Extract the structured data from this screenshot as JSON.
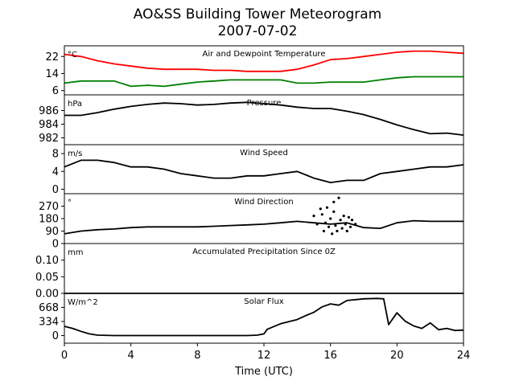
{
  "figure": {
    "title": "AO&SS Building Tower Meteorogram",
    "subtitle": "2007-07-02",
    "xlabel": "Time (UTC)"
  },
  "chart_data": [
    {
      "type": "line",
      "title": "Air and Dewpoint Temperature",
      "unit_label": "°C",
      "xlim": [
        0,
        24
      ],
      "ylim": [
        4,
        27
      ],
      "yticks": [
        6,
        14,
        22
      ],
      "x": [
        0,
        1,
        2,
        3,
        4,
        5,
        6,
        7,
        8,
        9,
        10,
        11,
        12,
        13,
        14,
        15,
        16,
        17,
        18,
        19,
        20,
        21,
        22,
        23,
        24
      ],
      "series": [
        {
          "name": "Air Temperature",
          "color": "#ff0000",
          "values": [
            23,
            22,
            20,
            18.5,
            17.5,
            16.5,
            16,
            16,
            16,
            15.5,
            15.5,
            15,
            15,
            15,
            16,
            18,
            20.5,
            21,
            22,
            23,
            24,
            24.5,
            24.5,
            24,
            23.5
          ]
        },
        {
          "name": "Dewpoint",
          "color": "#008000",
          "values": [
            9.5,
            10.5,
            10.5,
            10.5,
            8,
            8.5,
            8,
            9,
            10,
            10.5,
            11,
            11,
            11,
            11,
            9.5,
            9.5,
            10,
            10,
            10,
            11,
            12,
            12.5,
            12.5,
            12.5,
            12.5
          ]
        }
      ]
    },
    {
      "type": "line",
      "title": "Pressure",
      "unit_label": "hPa",
      "xlim": [
        0,
        24
      ],
      "ylim": [
        981,
        988.3
      ],
      "yticks": [
        982,
        984,
        986
      ],
      "x": [
        0,
        1,
        2,
        3,
        4,
        5,
        6,
        7,
        8,
        9,
        10,
        11,
        12,
        13,
        14,
        15,
        16,
        17,
        18,
        19,
        20,
        21,
        22,
        23,
        24
      ],
      "series": [
        {
          "name": "Pressure",
          "color": "#000000",
          "values": [
            985.3,
            985.3,
            985.7,
            986.2,
            986.6,
            986.9,
            987.1,
            987.0,
            986.8,
            986.9,
            987.1,
            987.2,
            987.0,
            986.8,
            986.5,
            986.3,
            986.3,
            985.9,
            985.4,
            984.7,
            983.9,
            983.2,
            982.6,
            982.7,
            982.4
          ]
        }
      ]
    },
    {
      "type": "line",
      "title": "Wind Speed",
      "unit_label": "m/s",
      "xlim": [
        0,
        24
      ],
      "ylim": [
        -1,
        10
      ],
      "yticks": [
        0,
        4,
        8
      ],
      "x": [
        0,
        1,
        2,
        3,
        4,
        5,
        6,
        7,
        8,
        9,
        10,
        11,
        12,
        13,
        14,
        15,
        16,
        17,
        18,
        19,
        20,
        21,
        22,
        23,
        24
      ],
      "series": [
        {
          "name": "Wind Speed",
          "color": "#000000",
          "values": [
            5,
            6.5,
            6.5,
            6,
            5,
            5,
            4.5,
            3.5,
            3,
            2.5,
            2.5,
            3,
            3,
            3.5,
            4,
            2.5,
            1.5,
            2,
            2,
            3.5,
            4,
            4.5,
            5,
            5,
            5.5
          ]
        }
      ]
    },
    {
      "type": "line",
      "title": "Wind Direction",
      "unit_label": "°",
      "xlim": [
        0,
        24
      ],
      "ylim": [
        0,
        360
      ],
      "yticks": [
        0,
        90,
        180,
        270
      ],
      "x": [
        0,
        1,
        2,
        3,
        4,
        5,
        6,
        7,
        8,
        9,
        10,
        11,
        12,
        13,
        14,
        15,
        16,
        17,
        18,
        19,
        20,
        21,
        22,
        23,
        24
      ],
      "series": [
        {
          "name": "Wind Direction",
          "color": "#000000",
          "values": [
            70,
            90,
            100,
            105,
            115,
            120,
            120,
            120,
            120,
            125,
            130,
            135,
            140,
            150,
            160,
            150,
            140,
            150,
            115,
            110,
            150,
            165,
            160,
            160,
            160
          ]
        }
      ],
      "scatter_points": [
        [
          15.0,
          200
        ],
        [
          15.2,
          140
        ],
        [
          15.5,
          210
        ],
        [
          15.6,
          90
        ],
        [
          15.7,
          150
        ],
        [
          15.8,
          260
        ],
        [
          15.9,
          120
        ],
        [
          16.0,
          180
        ],
        [
          16.1,
          70
        ],
        [
          16.2,
          230
        ],
        [
          16.3,
          130
        ],
        [
          16.4,
          90
        ],
        [
          16.5,
          330
        ],
        [
          16.6,
          170
        ],
        [
          16.7,
          110
        ],
        [
          16.8,
          200
        ],
        [
          16.9,
          140
        ],
        [
          17.0,
          90
        ],
        [
          17.1,
          190
        ],
        [
          17.2,
          120
        ],
        [
          17.3,
          170
        ],
        [
          17.5,
          140
        ],
        [
          16.2,
          300
        ],
        [
          15.4,
          250
        ]
      ]
    },
    {
      "type": "line",
      "title": "Accumulated Precipitation Since 0Z",
      "unit_label": "mm",
      "xlim": [
        0,
        24
      ],
      "ylim": [
        0,
        0.15
      ],
      "yticks": [
        0.0,
        0.05,
        0.1
      ],
      "ytick_labels": [
        "0.00",
        "0.05",
        "0.10"
      ],
      "x": [
        0,
        24
      ],
      "series": [
        {
          "name": "Precipitation",
          "color": "#000000",
          "values": [
            0,
            0
          ]
        }
      ]
    },
    {
      "type": "line",
      "title": "Solar Flux",
      "unit_label": "W/m^2",
      "xlim": [
        0,
        24
      ],
      "ylim": [
        -180,
        1000
      ],
      "yticks": [
        0,
        334,
        668
      ],
      "x": [
        0,
        0.5,
        1,
        1.5,
        2,
        3,
        6,
        9,
        11,
        11.6,
        12,
        12.2,
        13,
        14,
        14.5,
        15,
        15.5,
        16,
        16.5,
        17,
        18,
        18.8,
        19.2,
        19.5,
        20,
        20.5,
        21,
        21.5,
        22,
        22.5,
        23,
        23.5,
        24
      ],
      "series": [
        {
          "name": "Solar Flux",
          "color": "#000000",
          "values": [
            220,
            170,
            100,
            40,
            10,
            0,
            0,
            0,
            0,
            10,
            40,
            150,
            280,
            380,
            470,
            550,
            680,
            750,
            720,
            830,
            870,
            880,
            870,
            260,
            540,
            340,
            230,
            170,
            300,
            140,
            170,
            120,
            130
          ]
        }
      ]
    }
  ]
}
